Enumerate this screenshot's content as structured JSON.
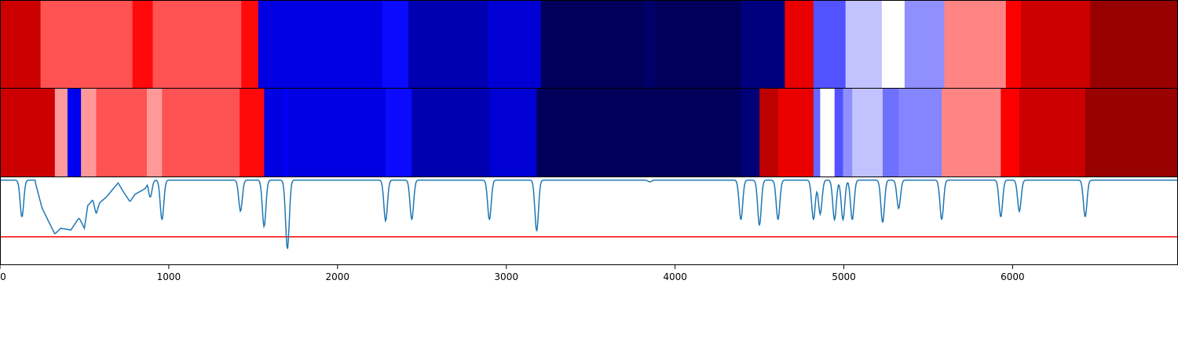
{
  "chart_data": [
    {
      "type": "heatmap",
      "panel": "top-band",
      "colormap": "seismic",
      "xlim": [
        0,
        6980
      ],
      "segments": [
        {
          "x0": 0,
          "x1": 240,
          "value": 0.85
        },
        {
          "x0": 240,
          "x1": 785,
          "value": 0.67
        },
        {
          "x0": 785,
          "x1": 905,
          "value": 0.74
        },
        {
          "x0": 905,
          "x1": 1430,
          "value": 0.67
        },
        {
          "x0": 1430,
          "x1": 1530,
          "value": 0.74
        },
        {
          "x0": 1530,
          "x1": 2265,
          "value": 0.21
        },
        {
          "x0": 2265,
          "x1": 2420,
          "value": 0.26
        },
        {
          "x0": 2420,
          "x1": 2890,
          "value": 0.14
        },
        {
          "x0": 2890,
          "x1": 3205,
          "value": 0.19
        },
        {
          "x0": 3205,
          "x1": 3810,
          "value": 0.02
        },
        {
          "x0": 3810,
          "x1": 3880,
          "value": 0.04
        },
        {
          "x0": 3880,
          "x1": 4390,
          "value": 0.02
        },
        {
          "x0": 4390,
          "x1": 4650,
          "value": 0.07
        },
        {
          "x0": 4650,
          "x1": 4820,
          "value": 0.79
        },
        {
          "x0": 4820,
          "x1": 5010,
          "value": 0.33
        },
        {
          "x0": 5010,
          "x1": 5225,
          "value": 0.44
        },
        {
          "x0": 5225,
          "x1": 5360,
          "value": 0.5
        },
        {
          "x0": 5360,
          "x1": 5595,
          "value": 0.39
        },
        {
          "x0": 5595,
          "x1": 5960,
          "value": 0.62
        },
        {
          "x0": 5960,
          "x1": 6050,
          "value": 0.76
        },
        {
          "x0": 6050,
          "x1": 6460,
          "value": 0.85
        },
        {
          "x0": 6460,
          "x1": 6980,
          "value": 0.95
        }
      ]
    },
    {
      "type": "heatmap",
      "panel": "middle-band",
      "colormap": "seismic",
      "xlim": [
        0,
        6980
      ],
      "segments": [
        {
          "x0": 0,
          "x1": 325,
          "value": 0.85
        },
        {
          "x0": 325,
          "x1": 400,
          "value": 0.6
        },
        {
          "x0": 400,
          "x1": 480,
          "value": 0.23
        },
        {
          "x0": 480,
          "x1": 570,
          "value": 0.6
        },
        {
          "x0": 570,
          "x1": 870,
          "value": 0.67
        },
        {
          "x0": 870,
          "x1": 960,
          "value": 0.6
        },
        {
          "x0": 960,
          "x1": 1420,
          "value": 0.67
        },
        {
          "x0": 1420,
          "x1": 1565,
          "value": 0.74
        },
        {
          "x0": 1565,
          "x1": 1685,
          "value": 0.21
        },
        {
          "x0": 1685,
          "x1": 1705,
          "value": 0.24
        },
        {
          "x0": 1705,
          "x1": 2285,
          "value": 0.21
        },
        {
          "x0": 2285,
          "x1": 2440,
          "value": 0.26
        },
        {
          "x0": 2440,
          "x1": 2900,
          "value": 0.14
        },
        {
          "x0": 2900,
          "x1": 3180,
          "value": 0.19
        },
        {
          "x0": 3180,
          "x1": 4390,
          "value": 0.02
        },
        {
          "x0": 4390,
          "x1": 4500,
          "value": 0.06
        },
        {
          "x0": 4500,
          "x1": 4610,
          "value": 0.88
        },
        {
          "x0": 4610,
          "x1": 4820,
          "value": 0.79
        },
        {
          "x0": 4820,
          "x1": 4860,
          "value": 0.35
        },
        {
          "x0": 4860,
          "x1": 4945,
          "value": 0.5
        },
        {
          "x0": 4945,
          "x1": 4995,
          "value": 0.33
        },
        {
          "x0": 4995,
          "x1": 5050,
          "value": 0.39
        },
        {
          "x0": 5050,
          "x1": 5230,
          "value": 0.44
        },
        {
          "x0": 5230,
          "x1": 5325,
          "value": 0.36
        },
        {
          "x0": 5325,
          "x1": 5580,
          "value": 0.38
        },
        {
          "x0": 5580,
          "x1": 5930,
          "value": 0.62
        },
        {
          "x0": 5930,
          "x1": 6040,
          "value": 0.76
        },
        {
          "x0": 6040,
          "x1": 6430,
          "value": 0.85
        },
        {
          "x0": 6430,
          "x1": 6980,
          "value": 0.95
        }
      ]
    },
    {
      "type": "line",
      "panel": "bottom-line",
      "xlim": [
        0,
        6980
      ],
      "ylim": [
        -1.5,
        0.05
      ],
      "line_color": "#1f77b4",
      "threshold": {
        "value": -1.0,
        "color": "#ff0000"
      },
      "xticks": [
        0,
        1000,
        2000,
        3000,
        4000,
        5000,
        6000
      ],
      "xtick_labels": [
        "0",
        "1000",
        "2000",
        "3000",
        "4000",
        "5000",
        "6000"
      ],
      "baseline": 0,
      "dips": [
        {
          "x": 130,
          "y": -0.65
        },
        {
          "x": 890,
          "y": -0.3
        },
        {
          "x": 960,
          "y": -0.7
        },
        {
          "x": 1425,
          "y": -0.55
        },
        {
          "x": 1565,
          "y": -0.82
        },
        {
          "x": 1700,
          "y": -0.5
        },
        {
          "x": 1705,
          "y": -0.75
        },
        {
          "x": 2285,
          "y": -0.72
        },
        {
          "x": 2440,
          "y": -0.7
        },
        {
          "x": 2900,
          "y": -0.7
        },
        {
          "x": 3180,
          "y": -0.9
        },
        {
          "x": 3850,
          "y": -0.03
        },
        {
          "x": 4390,
          "y": -0.7
        },
        {
          "x": 4500,
          "y": -0.8
        },
        {
          "x": 4610,
          "y": -0.7
        },
        {
          "x": 4820,
          "y": -0.7
        },
        {
          "x": 4860,
          "y": -0.6
        },
        {
          "x": 4945,
          "y": -0.7
        },
        {
          "x": 4995,
          "y": -0.7
        },
        {
          "x": 5050,
          "y": -0.7
        },
        {
          "x": 5230,
          "y": -0.75
        },
        {
          "x": 5325,
          "y": -0.5
        },
        {
          "x": 5580,
          "y": -0.7
        },
        {
          "x": 5930,
          "y": -0.65
        },
        {
          "x": 6040,
          "y": -0.55
        },
        {
          "x": 6430,
          "y": -0.65
        }
      ],
      "broad_region": [
        {
          "x": 210,
          "y": -0.05
        },
        {
          "x": 250,
          "y": -0.5
        },
        {
          "x": 300,
          "y": -0.8
        },
        {
          "x": 325,
          "y": -0.95
        },
        {
          "x": 360,
          "y": -0.85
        },
        {
          "x": 420,
          "y": -0.88
        },
        {
          "x": 460,
          "y": -0.7
        },
        {
          "x": 470,
          "y": -0.67
        },
        {
          "x": 500,
          "y": -0.85
        },
        {
          "x": 520,
          "y": -0.45
        },
        {
          "x": 550,
          "y": -0.35
        },
        {
          "x": 570,
          "y": -0.6
        },
        {
          "x": 590,
          "y": -0.4
        },
        {
          "x": 630,
          "y": -0.3
        },
        {
          "x": 680,
          "y": -0.12
        },
        {
          "x": 700,
          "y": -0.05
        },
        {
          "x": 730,
          "y": -0.2
        },
        {
          "x": 770,
          "y": -0.38
        },
        {
          "x": 800,
          "y": -0.25
        },
        {
          "x": 830,
          "y": -0.2
        },
        {
          "x": 860,
          "y": -0.15
        },
        {
          "x": 880,
          "y": -0.05
        }
      ]
    }
  ]
}
